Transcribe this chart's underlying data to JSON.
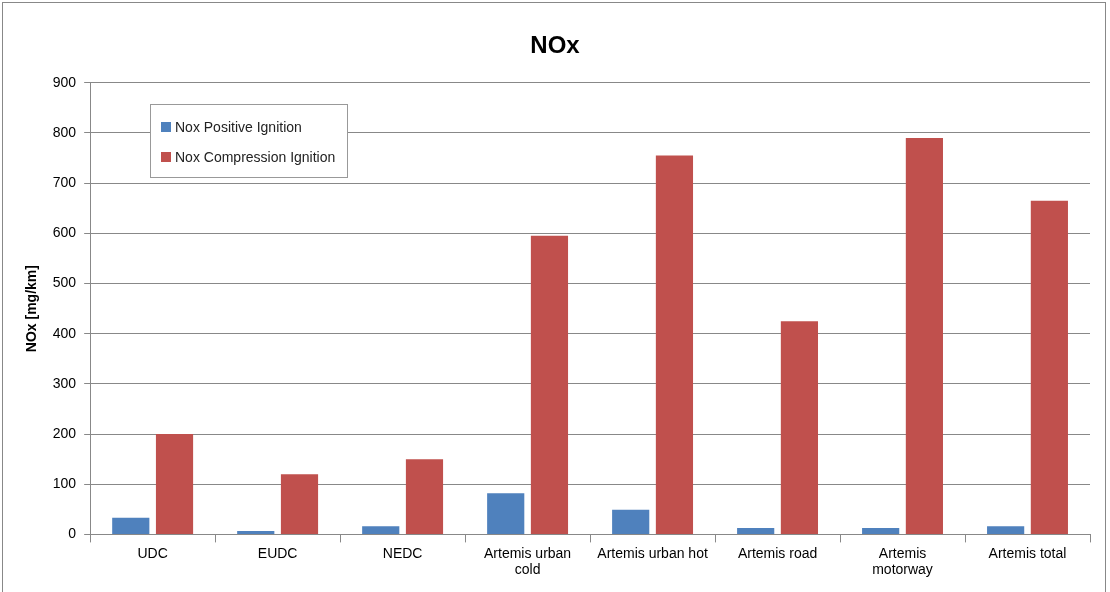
{
  "chart_data": {
    "type": "bar",
    "title": "NOx",
    "ylabel": "NOx [mg/km]",
    "categories": [
      "UDC",
      "EUDC",
      "NEDC",
      "Artemis urban cold",
      "Artemis urban hot",
      "Artemis road",
      "Artemis motorway",
      "Artemis total"
    ],
    "series": [
      {
        "name": "Nox Positive Ignition",
        "color": "#4f81bd",
        "values": [
          33,
          7,
          16,
          82,
          49,
          13,
          13,
          16
        ]
      },
      {
        "name": "Nox Compression Ignition",
        "color": "#c0504d",
        "values": [
          200,
          120,
          150,
          595,
          755,
          425,
          790,
          665
        ]
      }
    ],
    "ylim": [
      0,
      900
    ],
    "yticks": [
      0,
      100,
      200,
      300,
      400,
      500,
      600,
      700,
      800,
      900
    ],
    "grid": "y",
    "legend": "top left"
  }
}
